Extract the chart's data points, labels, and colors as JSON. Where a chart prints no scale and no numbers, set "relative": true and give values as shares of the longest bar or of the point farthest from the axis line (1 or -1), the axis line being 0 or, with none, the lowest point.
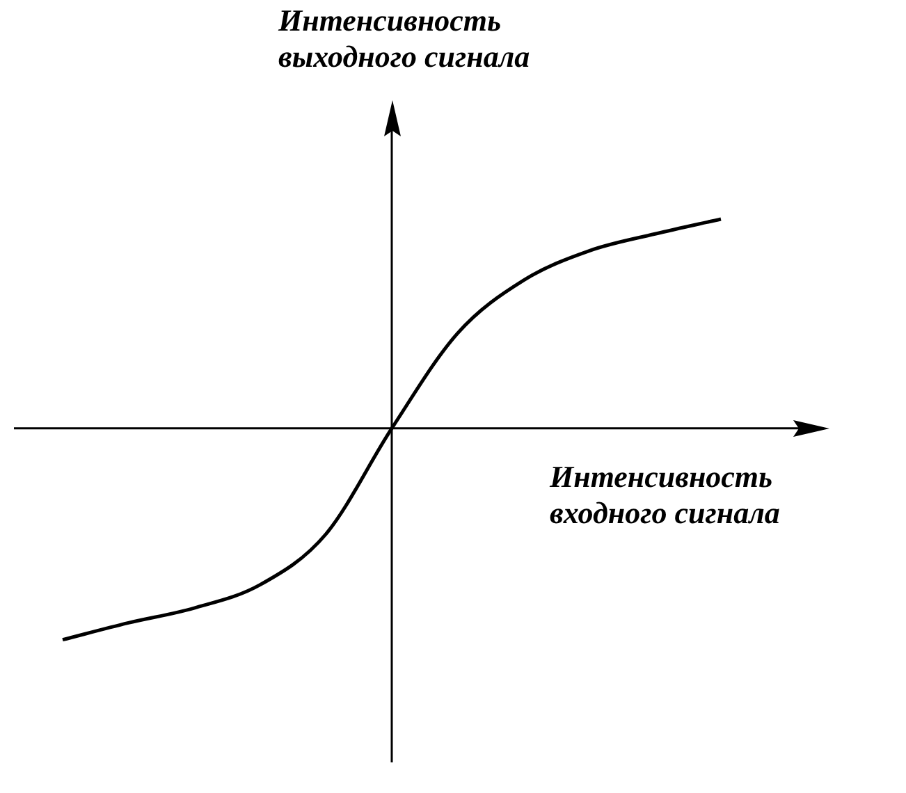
{
  "chart_data": {
    "type": "line",
    "relative": true,
    "xlabel": "Интенсивность входного сигнала",
    "ylabel": "Интенсивность выходного сигнала",
    "marker": "none",
    "line_style": "solid",
    "categories": [
      null,
      null,
      null,
      null,
      null,
      null,
      null,
      null,
      null,
      null,
      null
    ],
    "series": [
      {
        "color": "#000000",
        "values": [
          -1,
          -0.92,
          -0.85,
          -0.74,
          -0.5,
          0,
          0.45,
          0.7,
          0.84,
          0.92,
          0.99
        ]
      }
    ]
  }
}
